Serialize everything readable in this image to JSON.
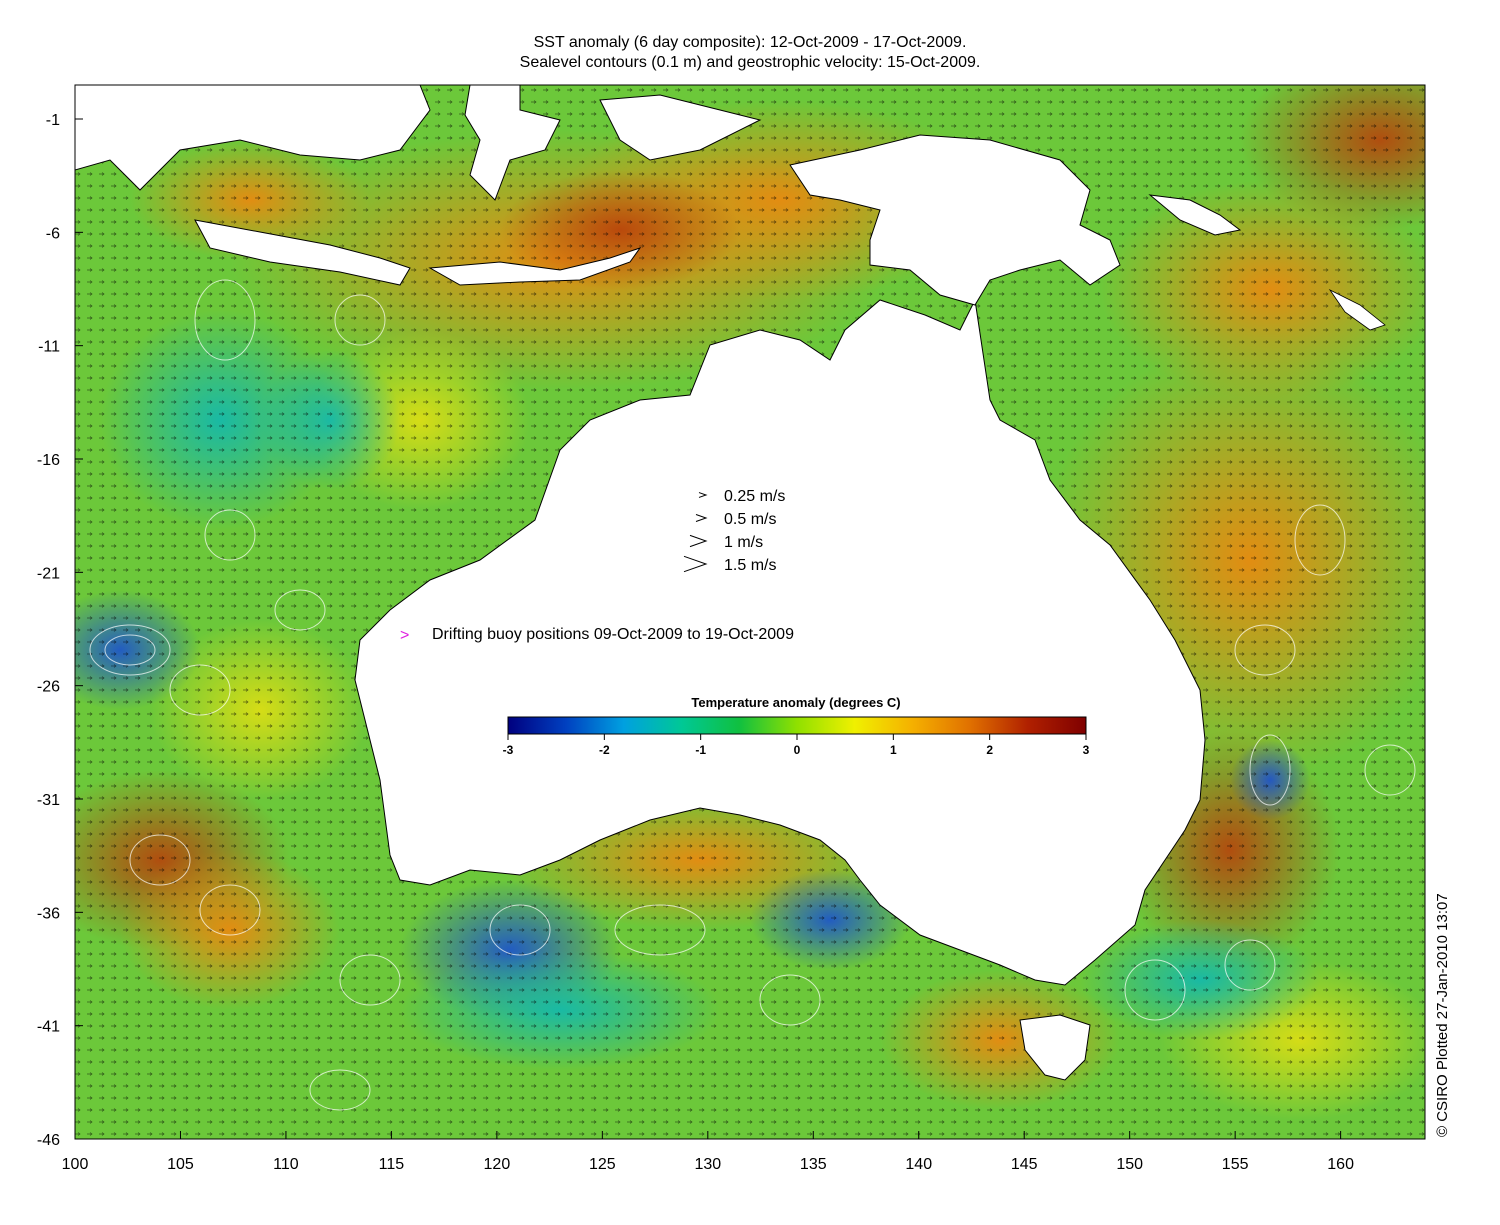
{
  "title_line1": "SST anomaly (6 day composite): 12-Oct-2009 - 17-Oct-2009.",
  "title_line2": "Sealevel contours (0.1 m) and geostrophic velocity: 15-Oct-2009.",
  "credit": "© CSIRO Plotted 27-Jan-2010 13:07",
  "axes": {
    "x_ticks": [
      100,
      105,
      110,
      115,
      120,
      125,
      130,
      135,
      140,
      145,
      150,
      155,
      160
    ],
    "y_ticks": [
      -1,
      -6,
      -11,
      -16,
      -21,
      -26,
      -31,
      -36,
      -41,
      -46
    ],
    "x_range": [
      100,
      164
    ],
    "y_range": [
      -46,
      0.5
    ]
  },
  "velocity_key": {
    "items": [
      {
        "label": "0.25 m/s",
        "speed": 0.25
      },
      {
        "label": "0.5 m/s",
        "speed": 0.5
      },
      {
        "label": "1 m/s",
        "speed": 1
      },
      {
        "label": "1.5 m/s",
        "speed": 1.5
      }
    ]
  },
  "buoy_legend": {
    "marker": ">",
    "label": "Drifting buoy positions 09-Oct-2009 to 19-Oct-2009",
    "color": "#e020e0"
  },
  "colorbar": {
    "title": "Temperature anomaly (degrees C)",
    "ticks": [
      "-3",
      "-2",
      "-1",
      "0",
      "1",
      "2",
      "3"
    ],
    "range": [
      -3,
      3
    ],
    "colors": [
      "#00007f",
      "#0040c0",
      "#00a0e0",
      "#00c896",
      "#10c040",
      "#90e000",
      "#f0f000",
      "#f5b000",
      "#e07000",
      "#b02000",
      "#7f0000"
    ]
  },
  "colors": {
    "land": "#ffffff",
    "ocean_base": "#6fcf3a",
    "warm": "#f2a21a",
    "cool": "#1aa8d8",
    "contour": "#ffffff"
  }
}
